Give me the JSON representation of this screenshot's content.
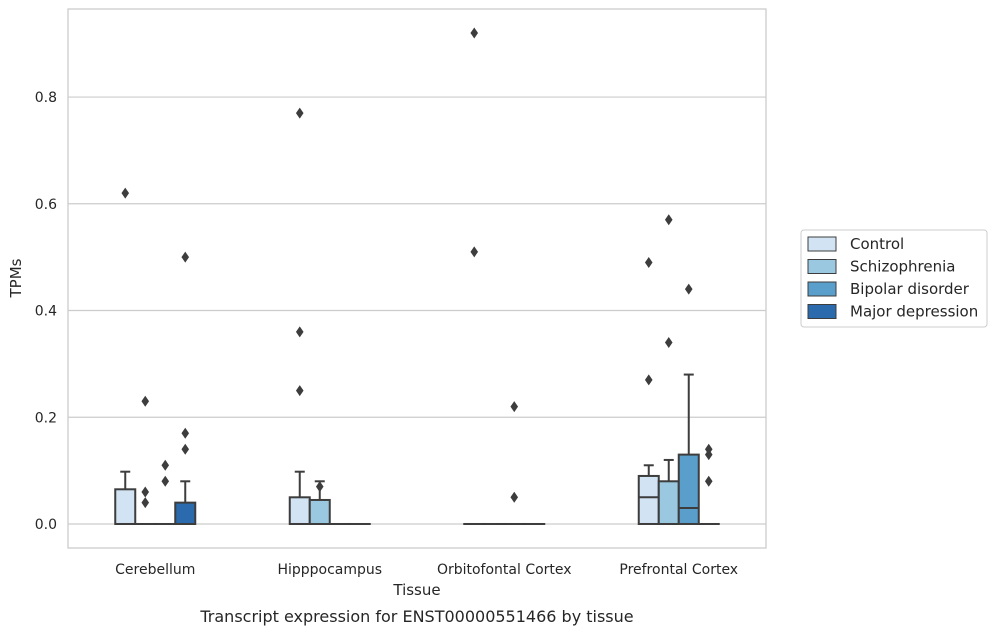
{
  "chart_data": {
    "type": "box",
    "xlabel": "Tissue",
    "ylabel": "TPMs",
    "caption": "Transcript expression for ENST00000551466 by tissue",
    "ylim": [
      -0.045,
      0.965
    ],
    "yticks": [
      0.0,
      0.2,
      0.4,
      0.6,
      0.8
    ],
    "ytick_labels": [
      "0.0",
      "0.2",
      "0.4",
      "0.6",
      "0.8"
    ],
    "grid": "horizontal",
    "legend_position": "outside-right",
    "categories": [
      "Cerebellum",
      "Hipppocampus",
      "Orbitofontal Cortex",
      "Prefrontal Cortex"
    ],
    "series": [
      {
        "name": "Control",
        "color": "#d2e3f3",
        "boxes": [
          {
            "q1": 0,
            "median": 0,
            "q3": 0.065,
            "whisker_low": 0,
            "whisker_high": 0.098,
            "outliers": [
              0.62
            ]
          },
          {
            "q1": 0,
            "median": 0,
            "q3": 0.05,
            "whisker_low": 0,
            "whisker_high": 0.098,
            "outliers": [
              0.25,
              0.36,
              0.77
            ]
          },
          {
            "q1": 0,
            "median": 0,
            "q3": 0,
            "whisker_low": 0,
            "whisker_high": 0,
            "outliers": [
              0.51,
              0.92
            ]
          },
          {
            "q1": 0,
            "median": 0.05,
            "q3": 0.09,
            "whisker_low": 0,
            "whisker_high": 0.11,
            "outliers": [
              0.27,
              0.49
            ]
          }
        ]
      },
      {
        "name": "Schizophrenia",
        "color": "#9ac8e0",
        "boxes": [
          {
            "q1": 0,
            "median": 0,
            "q3": 0,
            "whisker_low": 0,
            "whisker_high": 0,
            "outliers": [
              0.04,
              0.06,
              0.23
            ]
          },
          {
            "q1": 0,
            "median": 0,
            "q3": 0.045,
            "whisker_low": 0,
            "whisker_high": 0.08,
            "outliers": [
              0.07
            ]
          },
          {
            "q1": 0,
            "median": 0,
            "q3": 0,
            "whisker_low": 0,
            "whisker_high": 0,
            "outliers": []
          },
          {
            "q1": 0,
            "median": 0,
            "q3": 0.08,
            "whisker_low": 0,
            "whisker_high": 0.12,
            "outliers": [
              0.34,
              0.57
            ]
          }
        ]
      },
      {
        "name": "Bipolar disorder",
        "color": "#5a9ecb",
        "boxes": [
          {
            "q1": 0,
            "median": 0,
            "q3": 0,
            "whisker_low": 0,
            "whisker_high": 0,
            "outliers": [
              0.08,
              0.11
            ]
          },
          {
            "q1": 0,
            "median": 0,
            "q3": 0,
            "whisker_low": 0,
            "whisker_high": 0,
            "outliers": []
          },
          {
            "q1": 0,
            "median": 0,
            "q3": 0,
            "whisker_low": 0,
            "whisker_high": 0,
            "outliers": [
              0.05,
              0.22
            ]
          },
          {
            "q1": 0,
            "median": 0.03,
            "q3": 0.13,
            "whisker_low": 0,
            "whisker_high": 0.28,
            "outliers": [
              0.44
            ]
          }
        ]
      },
      {
        "name": "Major depression",
        "color": "#2a6aad",
        "boxes": [
          {
            "q1": 0,
            "median": 0,
            "q3": 0.04,
            "whisker_low": 0,
            "whisker_high": 0.08,
            "outliers": [
              0.14,
              0.17,
              0.5
            ]
          },
          {
            "q1": 0,
            "median": 0,
            "q3": 0,
            "whisker_low": 0,
            "whisker_high": 0,
            "outliers": []
          },
          {
            "q1": 0,
            "median": 0,
            "q3": 0,
            "whisker_low": 0,
            "whisker_high": 0,
            "outliers": []
          },
          {
            "q1": 0,
            "median": 0,
            "q3": 0,
            "whisker_low": 0,
            "whisker_high": 0,
            "outliers": [
              0.08,
              0.13,
              0.14
            ]
          }
        ]
      }
    ]
  }
}
